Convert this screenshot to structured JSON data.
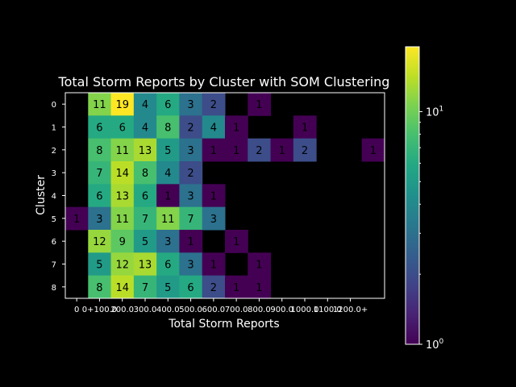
{
  "chart_data": {
    "type": "heatmap",
    "title": "Total Storm Reports by Cluster with SOM Clustering",
    "xlabel": "Total Storm Reports",
    "ylabel": "Cluster",
    "x_categories": [
      "0",
      "0+",
      "100.0",
      "200.0",
      "300.0",
      "400.0",
      "500.0",
      "600.0",
      "700.0",
      "800.0",
      "900.0",
      "1000.0",
      "1100.0",
      "1200.0+"
    ],
    "x_tick_labels": [
      "0",
      "0+100.0",
      "200.0",
      "300.0",
      "400.0",
      "500.0",
      "600.0",
      "700.0",
      "800.0",
      "900.0",
      "1000.0",
      "1100.0",
      "1200.0+"
    ],
    "y_categories": [
      "0",
      "1",
      "2",
      "3",
      "4",
      "5",
      "6",
      "7",
      "8"
    ],
    "values": [
      [
        null,
        11,
        19,
        4,
        6,
        3,
        2,
        null,
        1,
        null,
        null,
        null,
        null,
        null
      ],
      [
        null,
        6,
        6,
        4,
        8,
        2,
        4,
        1,
        null,
        null,
        1,
        null,
        null,
        null
      ],
      [
        null,
        8,
        11,
        13,
        5,
        3,
        1,
        1,
        2,
        1,
        2,
        null,
        null,
        1
      ],
      [
        null,
        7,
        14,
        8,
        4,
        2,
        null,
        null,
        null,
        null,
        null,
        null,
        null,
        null
      ],
      [
        null,
        6,
        13,
        6,
        1,
        3,
        1,
        null,
        null,
        null,
        null,
        null,
        null,
        null
      ],
      [
        1,
        3,
        11,
        7,
        11,
        7,
        3,
        null,
        null,
        null,
        null,
        null,
        null,
        null
      ],
      [
        null,
        12,
        9,
        5,
        3,
        1,
        null,
        1,
        null,
        null,
        null,
        null,
        null,
        null
      ],
      [
        null,
        5,
        12,
        13,
        6,
        3,
        1,
        null,
        1,
        null,
        null,
        null,
        null,
        null
      ],
      [
        null,
        8,
        14,
        7,
        5,
        6,
        2,
        1,
        1,
        null,
        null,
        null,
        null,
        null
      ]
    ],
    "colormap": "viridis",
    "color_scale": "log",
    "vmin": 1,
    "vmax": 19,
    "colorbar_ticks": [
      "10^0",
      "10^1"
    ],
    "background": "#000000",
    "text_color": "#ffffff",
    "cell_text_color": "#000000"
  }
}
